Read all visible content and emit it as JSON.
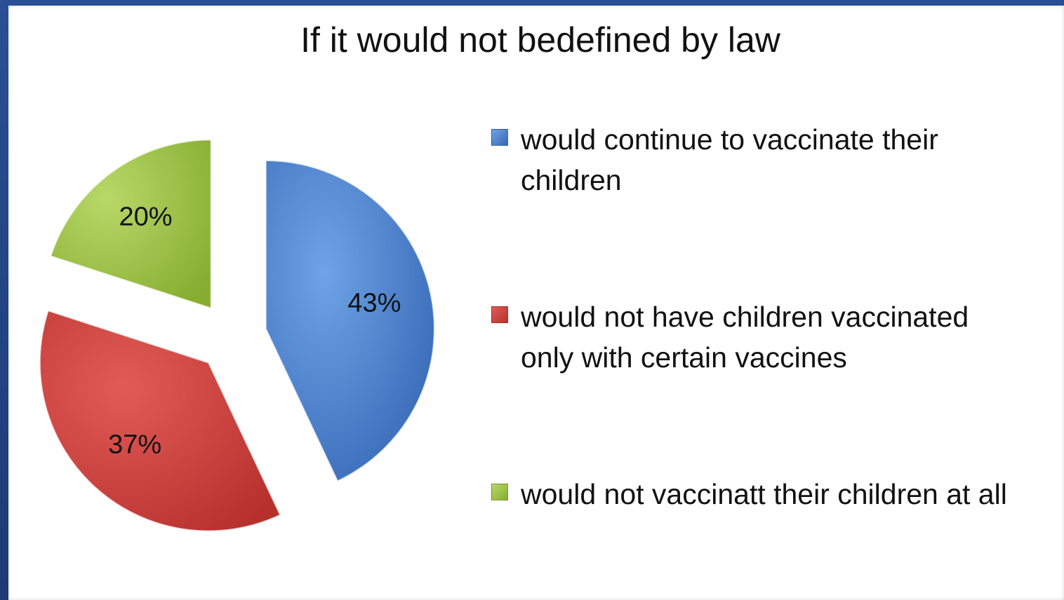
{
  "chart_data": {
    "type": "pie",
    "title": "If it would not bedefined by law",
    "slices": [
      {
        "label": "would continue to vaccinate their\nchildren",
        "value": 43,
        "display": "43%",
        "color": "#4a86d4"
      },
      {
        "label": "would not have children vaccinated\nonly with certain vaccines",
        "value": 37,
        "display": "37%",
        "color": "#d0413e"
      },
      {
        "label": "would not vaccinatt their children at all",
        "value": 20,
        "display": "20%",
        "color": "#9cc443"
      }
    ],
    "legend_position": "right"
  }
}
